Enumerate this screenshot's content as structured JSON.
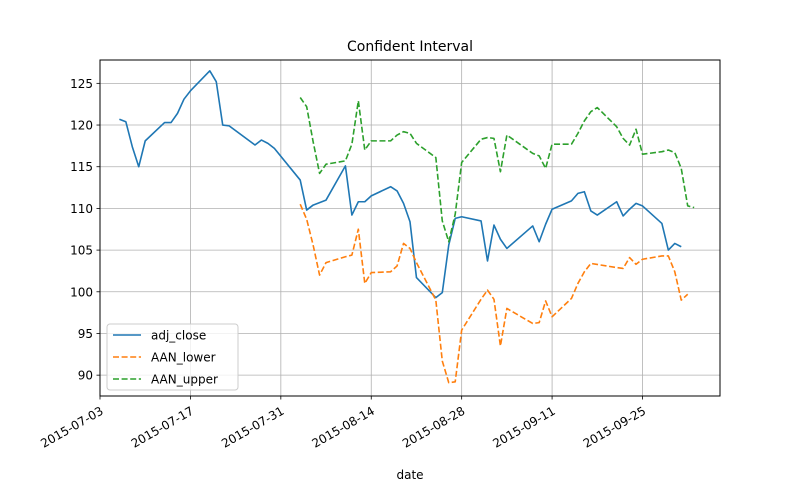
{
  "chart_data": {
    "type": "line",
    "title": "Confident Interval",
    "xlabel": "date",
    "ylabel": "",
    "x_range": [
      "2015-07-03",
      "2015-10-07"
    ],
    "ylim": [
      87.5,
      127.8
    ],
    "x_ticks": [
      "2015-07-03",
      "2015-07-17",
      "2015-07-31",
      "2015-08-14",
      "2015-08-28",
      "2015-09-11",
      "2015-09-25"
    ],
    "y_ticks": [
      90,
      95,
      100,
      105,
      110,
      115,
      120,
      125
    ],
    "grid": true,
    "legend_position": "lower-left",
    "series": [
      {
        "name": "adj_close",
        "color": "#1f77b4",
        "style": "solid",
        "points": [
          [
            "2015-07-06",
            120.7
          ],
          [
            "2015-07-07",
            120.4
          ],
          [
            "2015-07-08",
            117.4
          ],
          [
            "2015-07-09",
            115.0
          ],
          [
            "2015-07-10",
            118.1
          ],
          [
            "2015-07-13",
            120.3
          ],
          [
            "2015-07-14",
            120.3
          ],
          [
            "2015-07-15",
            121.4
          ],
          [
            "2015-07-16",
            123.1
          ],
          [
            "2015-07-17",
            124.1
          ],
          [
            "2015-07-20",
            126.5
          ],
          [
            "2015-07-21",
            125.2
          ],
          [
            "2015-07-22",
            120.0
          ],
          [
            "2015-07-23",
            119.9
          ],
          [
            "2015-07-27",
            117.6
          ],
          [
            "2015-07-28",
            118.2
          ],
          [
            "2015-07-29",
            117.8
          ],
          [
            "2015-07-30",
            117.2
          ],
          [
            "2015-08-03",
            113.4
          ],
          [
            "2015-08-04",
            109.8
          ],
          [
            "2015-08-05",
            110.4
          ],
          [
            "2015-08-07",
            111.0
          ],
          [
            "2015-08-10",
            115.1
          ],
          [
            "2015-08-11",
            109.2
          ],
          [
            "2015-08-12",
            110.8
          ],
          [
            "2015-08-13",
            110.8
          ],
          [
            "2015-08-14",
            111.5
          ],
          [
            "2015-08-17",
            112.6
          ],
          [
            "2015-08-18",
            112.1
          ],
          [
            "2015-08-19",
            110.6
          ],
          [
            "2015-08-20",
            108.4
          ],
          [
            "2015-08-21",
            101.7
          ],
          [
            "2015-08-24",
            99.3
          ],
          [
            "2015-08-25",
            99.9
          ],
          [
            "2015-08-26",
            105.6
          ],
          [
            "2015-08-27",
            108.8
          ],
          [
            "2015-08-28",
            109.0
          ],
          [
            "2015-08-31",
            108.5
          ],
          [
            "2015-09-01",
            103.7
          ],
          [
            "2015-09-02",
            108.0
          ],
          [
            "2015-09-03",
            106.3
          ],
          [
            "2015-09-04",
            105.2
          ],
          [
            "2015-09-08",
            107.9
          ],
          [
            "2015-09-09",
            106.0
          ],
          [
            "2015-09-10",
            108.1
          ],
          [
            "2015-09-11",
            109.9
          ],
          [
            "2015-09-14",
            110.9
          ],
          [
            "2015-09-15",
            111.8
          ],
          [
            "2015-09-16",
            112.0
          ],
          [
            "2015-09-17",
            109.7
          ],
          [
            "2015-09-18",
            109.2
          ],
          [
            "2015-09-21",
            110.8
          ],
          [
            "2015-09-22",
            109.1
          ],
          [
            "2015-09-23",
            109.9
          ],
          [
            "2015-09-24",
            110.6
          ],
          [
            "2015-09-25",
            110.3
          ],
          [
            "2015-09-28",
            108.2
          ],
          [
            "2015-09-29",
            105.0
          ],
          [
            "2015-09-30",
            105.8
          ],
          [
            "2015-10-01",
            105.4
          ]
        ]
      },
      {
        "name": "AAN_lower",
        "color": "#ff7f0e",
        "style": "dashed",
        "points": [
          [
            "2015-08-03",
            110.5
          ],
          [
            "2015-08-04",
            108.7
          ],
          [
            "2015-08-05",
            105.6
          ],
          [
            "2015-08-06",
            102.0
          ],
          [
            "2015-08-07",
            103.5
          ],
          [
            "2015-08-10",
            104.2
          ],
          [
            "2015-08-11",
            104.4
          ],
          [
            "2015-08-12",
            107.5
          ],
          [
            "2015-08-13",
            101.0
          ],
          [
            "2015-08-14",
            102.3
          ],
          [
            "2015-08-17",
            102.4
          ],
          [
            "2015-08-18",
            103.1
          ],
          [
            "2015-08-19",
            105.8
          ],
          [
            "2015-08-20",
            105.2
          ],
          [
            "2015-08-21",
            103.5
          ],
          [
            "2015-08-24",
            99.0
          ],
          [
            "2015-08-25",
            91.7
          ],
          [
            "2015-08-26",
            89.1
          ],
          [
            "2015-08-27",
            89.2
          ],
          [
            "2015-08-28",
            95.4
          ],
          [
            "2015-08-31",
            99.1
          ],
          [
            "2015-09-01",
            100.2
          ],
          [
            "2015-09-02",
            99.1
          ],
          [
            "2015-09-03",
            93.5
          ],
          [
            "2015-09-04",
            98.0
          ],
          [
            "2015-09-08",
            96.2
          ],
          [
            "2015-09-09",
            96.3
          ],
          [
            "2015-09-10",
            98.9
          ],
          [
            "2015-09-11",
            97.0
          ],
          [
            "2015-09-14",
            99.2
          ],
          [
            "2015-09-15",
            101.0
          ],
          [
            "2015-09-16",
            102.4
          ],
          [
            "2015-09-17",
            103.4
          ],
          [
            "2015-09-21",
            102.9
          ],
          [
            "2015-09-22",
            102.8
          ],
          [
            "2015-09-23",
            104.1
          ],
          [
            "2015-09-24",
            103.3
          ],
          [
            "2015-09-25",
            103.9
          ],
          [
            "2015-09-28",
            104.3
          ],
          [
            "2015-09-29",
            104.3
          ],
          [
            "2015-09-30",
            102.4
          ],
          [
            "2015-10-01",
            99.0
          ],
          [
            "2015-10-02",
            99.7
          ]
        ]
      },
      {
        "name": "AAN_upper",
        "color": "#2ca02c",
        "style": "dashed",
        "points": [
          [
            "2015-08-03",
            123.3
          ],
          [
            "2015-08-04",
            122.2
          ],
          [
            "2015-08-05",
            118.0
          ],
          [
            "2015-08-06",
            114.2
          ],
          [
            "2015-08-07",
            115.3
          ],
          [
            "2015-08-10",
            115.7
          ],
          [
            "2015-08-11",
            117.7
          ],
          [
            "2015-08-12",
            122.9
          ],
          [
            "2015-08-13",
            117.0
          ],
          [
            "2015-08-14",
            118.1
          ],
          [
            "2015-08-17",
            118.1
          ],
          [
            "2015-08-18",
            118.8
          ],
          [
            "2015-08-19",
            119.2
          ],
          [
            "2015-08-20",
            119.0
          ],
          [
            "2015-08-21",
            117.8
          ],
          [
            "2015-08-24",
            116.1
          ],
          [
            "2015-08-25",
            108.5
          ],
          [
            "2015-08-26",
            106.0
          ],
          [
            "2015-08-27",
            109.3
          ],
          [
            "2015-08-28",
            115.5
          ],
          [
            "2015-08-31",
            118.3
          ],
          [
            "2015-09-01",
            118.5
          ],
          [
            "2015-09-02",
            118.4
          ],
          [
            "2015-09-03",
            114.4
          ],
          [
            "2015-09-04",
            118.8
          ],
          [
            "2015-09-08",
            116.6
          ],
          [
            "2015-09-09",
            116.3
          ],
          [
            "2015-09-10",
            114.8
          ],
          [
            "2015-09-11",
            117.7
          ],
          [
            "2015-09-14",
            117.7
          ],
          [
            "2015-09-15",
            119.0
          ],
          [
            "2015-09-16",
            120.5
          ],
          [
            "2015-09-17",
            121.6
          ],
          [
            "2015-09-18",
            122.1
          ],
          [
            "2015-09-21",
            119.8
          ],
          [
            "2015-09-22",
            118.4
          ],
          [
            "2015-09-23",
            117.6
          ],
          [
            "2015-09-24",
            119.5
          ],
          [
            "2015-09-25",
            116.5
          ],
          [
            "2015-09-28",
            116.8
          ],
          [
            "2015-09-29",
            117.0
          ],
          [
            "2015-09-30",
            116.7
          ],
          [
            "2015-10-01",
            114.8
          ],
          [
            "2015-10-02",
            110.3
          ],
          [
            "2015-10-03",
            110.1
          ]
        ]
      }
    ]
  }
}
